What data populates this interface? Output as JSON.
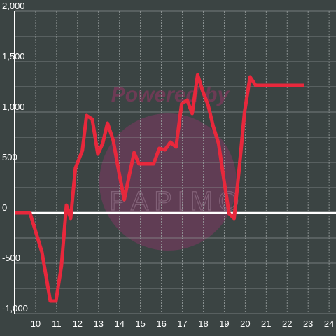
{
  "chart_data": {
    "type": "line",
    "watermark": [
      "Powered by",
      "PAPIMO"
    ],
    "x": [
      9.0,
      9.73,
      10.3,
      10.7,
      10.97,
      11.23,
      11.47,
      11.67,
      11.9,
      12.23,
      12.43,
      12.7,
      12.97,
      13.2,
      13.43,
      13.7,
      13.97,
      14.23,
      14.47,
      14.7,
      14.93,
      15.23,
      15.63,
      15.9,
      16.17,
      16.43,
      16.7,
      16.97,
      17.23,
      17.47,
      17.73,
      17.97,
      18.23,
      18.47,
      18.73,
      19.0,
      19.23,
      19.47,
      19.7,
      19.97,
      20.23,
      20.5,
      22.8
    ],
    "series": [
      {
        "color": "#e8283c",
        "values": [
          0,
          0,
          -390,
          -875,
          -875,
          -528,
          76,
          -55,
          444,
          618,
          965,
          930,
          583,
          688,
          889,
          722,
          410,
          132,
          375,
          597,
          486,
          486,
          486,
          639,
          625,
          701,
          653,
          1083,
          1118,
          986,
          1368,
          1208,
          1069,
          861,
          688,
          306,
          -7,
          -56,
          410,
          1000,
          1347,
          1264,
          1264
        ]
      }
    ],
    "xlim": [
      9,
      24.33
    ],
    "xticks": [
      10,
      11,
      12,
      13,
      14,
      15,
      16,
      17,
      18,
      19,
      20,
      21,
      22,
      23,
      24
    ],
    "ylim": [
      -1000,
      2000
    ],
    "yticks": [
      {
        "value": -1000,
        "label": "-1,000"
      },
      -500,
      0,
      500,
      {
        "value": 1000,
        "label": "1,000"
      },
      {
        "value": 1500,
        "label": "1,500"
      },
      {
        "value": 2000,
        "label": "2,000"
      }
    ],
    "y_minor_grid": [
      -750,
      -250,
      250,
      750,
      1250,
      1750
    ],
    "grid": true
  }
}
